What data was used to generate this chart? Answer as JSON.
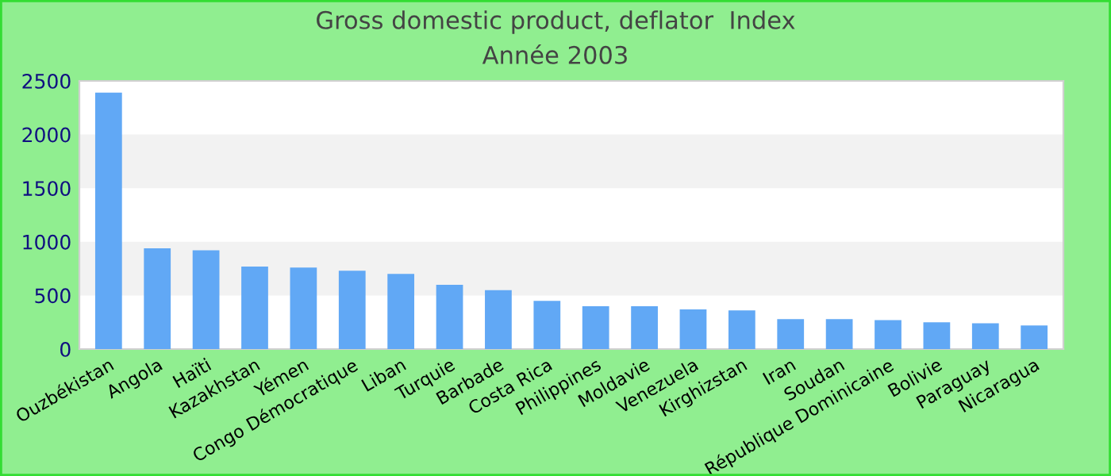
{
  "chart_data": {
    "type": "bar",
    "title": "Gross domestic product, deflator  Index",
    "subtitle": "Année 2003",
    "categories": [
      "Ouzbékistan",
      "Angola",
      "Haïti",
      "Kazakhstan",
      "Yémen",
      "Congo Démocratique",
      "Liban",
      "Turquie",
      "Barbade",
      "Costa Rica",
      "Philippines",
      "Moldavie",
      "Venezuela",
      "Kirghizstan",
      "Iran",
      "Soudan",
      "République Dominicaine",
      "Bolivie",
      "Paraguay",
      "Nicaragua"
    ],
    "values": [
      2390,
      940,
      920,
      770,
      760,
      730,
      700,
      600,
      550,
      450,
      400,
      400,
      370,
      360,
      280,
      280,
      270,
      250,
      240,
      220
    ],
    "color": "#61a8f5",
    "ylim": [
      0,
      2500
    ],
    "yticks": [
      0,
      500,
      1000,
      1500,
      2000,
      2500
    ],
    "bands": [
      {
        "axis": "y",
        "from": 500,
        "to": 1000,
        "color": "#f2f2f2"
      },
      {
        "axis": "y",
        "from": 1500,
        "to": 2000,
        "color": "#f2f2f2"
      }
    ]
  }
}
